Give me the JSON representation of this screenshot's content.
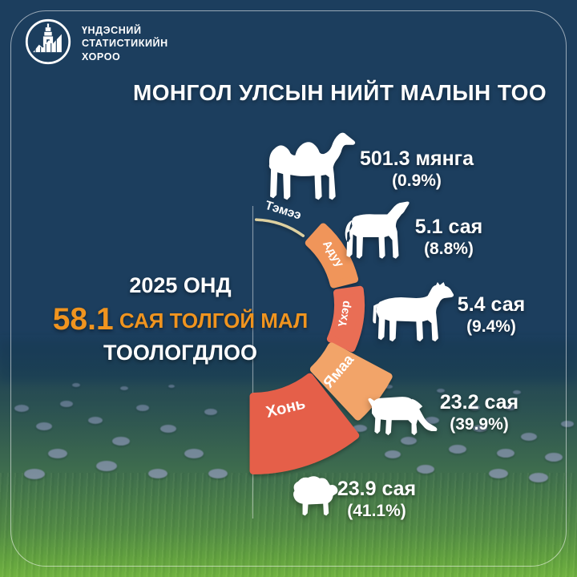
{
  "brand": {
    "org_line1": "ҮНДЭСНИЙ",
    "org_line2": "СТАТИСТИКИЙН",
    "org_line3": "ХОРОО"
  },
  "title": "МОНГОЛ УЛСЫН НИЙТ МАЛЫН ТОО",
  "headline": {
    "line1": "2025 ОНД",
    "highlight_number": "58.1",
    "highlight_rest": " САЯ ТОЛГОЙ МАЛ",
    "line3": "ТООЛОГДЛОО",
    "accent_color": "#f0941f"
  },
  "colors": {
    "background_navy": "#1c3e5e",
    "border": "rgba(255,255,255,0.55)"
  },
  "chart_data": {
    "type": "pie",
    "variant": "radial-half-donut",
    "title": "МОНГОЛ УЛСЫН НИЙТ МАЛЫН ТОО",
    "year": "2025",
    "total_text": "58.1 сая толгой мал",
    "categories": [
      "Тэмээ",
      "Адуу",
      "Үхэр",
      "Ямаа",
      "Хонь"
    ],
    "values_million_head": [
      0.5013,
      5.1,
      5.4,
      23.2,
      23.9
    ],
    "percents": [
      0.9,
      8.8,
      9.4,
      39.9,
      41.1
    ],
    "legend_position": "on-segment",
    "segments": [
      {
        "label": "Тэмээ",
        "animal": "camel",
        "value_text": "501.3 мянга",
        "percent_text": "(0.9%)",
        "color": "#ddd0a0"
      },
      {
        "label": "Адуу",
        "animal": "horse",
        "value_text": "5.1 сая",
        "percent_text": "(8.8%)",
        "color": "#f0955a"
      },
      {
        "label": "Үхэр",
        "animal": "cattle",
        "value_text": "5.4 сая",
        "percent_text": "(9.4%)",
        "color": "#e96e54"
      },
      {
        "label": "Ямаа",
        "animal": "goat",
        "value_text": "23.2 сая",
        "percent_text": "(39.9%)",
        "color": "#f2a469"
      },
      {
        "label": "Хонь",
        "animal": "sheep",
        "value_text": "23.9 сая",
        "percent_text": "(41.1%)",
        "color": "#e55f4a"
      }
    ]
  }
}
